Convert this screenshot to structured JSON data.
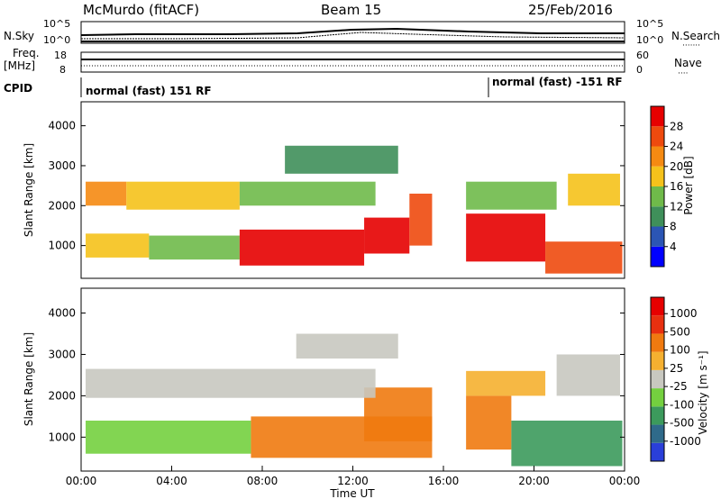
{
  "header": {
    "station": "McMurdo (fitACF)",
    "beam": "Beam 15",
    "date": "25/Feb/2016"
  },
  "side_labels": {
    "nsky": "N.Sky",
    "nsearch": "N.Search",
    "nsearch_dots": "·······",
    "freq": "Freq.",
    "freq_unit": "[MHz]",
    "nave": "Nave",
    "nave_dots": "····",
    "cpid": "CPID"
  },
  "strip_ticks": {
    "noise_left": [
      "10^5",
      "10^0"
    ],
    "noise_right": [
      "10^5",
      "10^0"
    ],
    "freq_left": [
      "18",
      "8"
    ],
    "nave_right": [
      "60",
      "0"
    ]
  },
  "cpid": {
    "segments": [
      "normal (fast) 151 RF",
      "normal (fast) -151 RF"
    ],
    "switch_time": "18:00"
  },
  "chart_data": [
    {
      "type": "heatmap",
      "name": "power",
      "ylabel": "Slant Range [km]",
      "yticks": [
        "1000",
        "2000",
        "3000",
        "4000"
      ],
      "ylim": [
        180,
        4600
      ],
      "xlim": [
        0,
        24
      ],
      "colorbar": {
        "label": "Power [dB]",
        "ticks": [
          "4",
          "8",
          "12",
          "16",
          "20",
          "24",
          "28"
        ],
        "range": [
          0,
          32
        ],
        "colors": [
          "#0000ff",
          "#2b55b4",
          "#3f8f5a",
          "#6fba4a",
          "#f5c21b",
          "#f58a12",
          "#ee4a0e",
          "#e60000"
        ]
      },
      "bands": [
        {
          "t0": 0.2,
          "t1": 3.0,
          "r0": 700,
          "r1": 1300,
          "level": 4
        },
        {
          "t0": 3.0,
          "t1": 7.0,
          "r0": 650,
          "r1": 1250,
          "level": 3
        },
        {
          "t0": 7.0,
          "t1": 12.5,
          "r0": 500,
          "r1": 1400,
          "level": 7
        },
        {
          "t0": 12.5,
          "t1": 14.5,
          "r0": 800,
          "r1": 1700,
          "level": 7
        },
        {
          "t0": 14.5,
          "t1": 15.5,
          "r0": 1000,
          "r1": 2300,
          "level": 6
        },
        {
          "t0": 17.0,
          "t1": 20.5,
          "r0": 600,
          "r1": 1800,
          "level": 7
        },
        {
          "t0": 20.5,
          "t1": 23.9,
          "r0": 300,
          "r1": 1100,
          "level": 6
        },
        {
          "t0": 0.2,
          "t1": 2.0,
          "r0": 2000,
          "r1": 2600,
          "level": 5
        },
        {
          "t0": 2.0,
          "t1": 7.0,
          "r0": 1900,
          "r1": 2600,
          "level": 4
        },
        {
          "t0": 7.0,
          "t1": 13.0,
          "r0": 2000,
          "r1": 2600,
          "level": 3
        },
        {
          "t0": 9.0,
          "t1": 14.0,
          "r0": 2800,
          "r1": 3500,
          "level": 2
        },
        {
          "t0": 17.0,
          "t1": 21.0,
          "r0": 1900,
          "r1": 2600,
          "level": 3
        },
        {
          "t0": 21.5,
          "t1": 23.8,
          "r0": 2000,
          "r1": 2800,
          "level": 4
        }
      ]
    },
    {
      "type": "heatmap",
      "name": "velocity",
      "ylabel": "Slant Range [km]",
      "xlabel": "Time UT",
      "xticks": [
        "00:00",
        "04:00",
        "08:00",
        "12:00",
        "16:00",
        "20:00",
        "00:00"
      ],
      "yticks": [
        "1000",
        "2000",
        "3000",
        "4000"
      ],
      "ylim": [
        180,
        4600
      ],
      "xlim": [
        0,
        24
      ],
      "colorbar": {
        "label": "Velocity [m s⁻¹]",
        "ticks": [
          "1000",
          "500",
          "100",
          "25",
          "-25",
          "-100",
          "-500",
          "-1000"
        ],
        "colors": [
          "#2a3fd9",
          "#2f6a8a",
          "#3c9a5c",
          "#74d03f",
          "#c8c8c0",
          "#f5b030",
          "#f07a10",
          "#e83010",
          "#e60000"
        ]
      },
      "bands": [
        {
          "t0": 0.2,
          "t1": 7.5,
          "r0": 600,
          "r1": 1400,
          "level": 3
        },
        {
          "t0": 7.5,
          "t1": 15.5,
          "r0": 500,
          "r1": 1500,
          "level": 6
        },
        {
          "t0": 12.5,
          "t1": 15.5,
          "r0": 900,
          "r1": 2200,
          "level": 6
        },
        {
          "t0": 17.0,
          "t1": 19.0,
          "r0": 700,
          "r1": 2000,
          "level": 6
        },
        {
          "t0": 19.0,
          "t1": 23.9,
          "r0": 300,
          "r1": 1400,
          "level": 2
        },
        {
          "t0": 0.2,
          "t1": 13.0,
          "r0": 1950,
          "r1": 2650,
          "level": 4
        },
        {
          "t0": 9.5,
          "t1": 14.0,
          "r0": 2900,
          "r1": 3500,
          "level": 4
        },
        {
          "t0": 17.0,
          "t1": 20.5,
          "r0": 2000,
          "r1": 2600,
          "level": 5
        },
        {
          "t0": 21.0,
          "t1": 23.8,
          "r0": 2000,
          "r1": 3000,
          "level": 4
        }
      ]
    }
  ]
}
